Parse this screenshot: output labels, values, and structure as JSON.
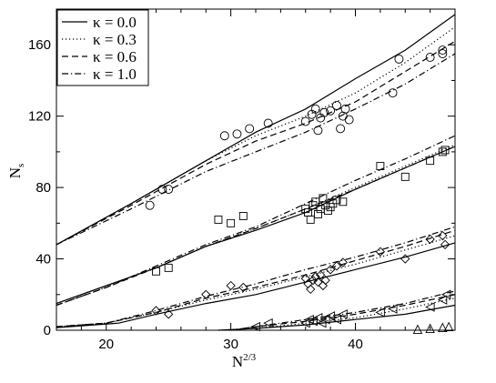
{
  "chart_data": {
    "type": "scatter",
    "title": "",
    "xlabel": "N",
    "xlabel_sup": "2/3",
    "ylabel": "N",
    "ylabel_sub": "s",
    "xlim": [
      16,
      48
    ],
    "ylim": [
      0,
      180
    ],
    "x_ticks": [
      20,
      30,
      40
    ],
    "y_ticks": [
      0,
      40,
      80,
      120,
      160
    ],
    "grid": false,
    "legend_position": "top-left",
    "series": [
      {
        "name": "κ = 0.0",
        "dash": "solid",
        "curves": [
          [
            [
              16,
              48
            ],
            [
              22,
              71
            ],
            [
              28,
              95
            ],
            [
              32,
              111
            ],
            [
              36,
              124
            ],
            [
              40,
              141
            ],
            [
              44,
              157
            ],
            [
              48,
              177
            ]
          ],
          [
            [
              16,
              15
            ],
            [
              20,
              25
            ],
            [
              24,
              35
            ],
            [
              28,
              47
            ],
            [
              32,
              56
            ],
            [
              36,
              66
            ],
            [
              40,
              79
            ],
            [
              44,
              91
            ],
            [
              48,
              103
            ]
          ],
          [
            [
              16,
              1.5
            ],
            [
              21,
              4
            ],
            [
              24,
              9
            ],
            [
              28,
              15
            ],
            [
              32,
              20
            ],
            [
              36,
              27
            ],
            [
              40,
              34
            ],
            [
              44,
              41
            ],
            [
              48,
              49
            ]
          ],
          [
            [
              29,
              0
            ],
            [
              32,
              1
            ],
            [
              36,
              3
            ],
            [
              40,
              6
            ],
            [
              44,
              9
            ],
            [
              48,
              14
            ]
          ]
        ]
      },
      {
        "name": "κ = 0.3",
        "dash": "dotted",
        "curves": [
          [
            [
              16,
              48
            ],
            [
              22,
              71
            ],
            [
              28,
              95
            ],
            [
              32,
              109
            ],
            [
              36,
              120
            ],
            [
              40,
              133
            ],
            [
              44,
              150
            ],
            [
              48,
              170
            ]
          ],
          [
            [
              16,
              15
            ],
            [
              20,
              25
            ],
            [
              24,
              35
            ],
            [
              28,
              47
            ],
            [
              32,
              57
            ],
            [
              36,
              68
            ],
            [
              40,
              80
            ],
            [
              44,
              92
            ],
            [
              48,
              104
            ]
          ],
          [
            [
              16,
              2
            ],
            [
              20,
              4
            ],
            [
              24,
              10
            ],
            [
              28,
              17
            ],
            [
              32,
              23
            ],
            [
              36,
              30
            ],
            [
              40,
              37
            ],
            [
              44,
              45
            ],
            [
              48,
              53
            ]
          ],
          [
            [
              29,
              0
            ],
            [
              32,
              1
            ],
            [
              36,
              4
            ],
            [
              40,
              7
            ],
            [
              44,
              12
            ],
            [
              48,
              18
            ]
          ]
        ]
      },
      {
        "name": "κ = 0.6",
        "dash": "dashed",
        "curves": [
          [
            [
              16,
              48
            ],
            [
              22,
              70
            ],
            [
              28,
              93
            ],
            [
              32,
              106
            ],
            [
              36,
              116
            ],
            [
              40,
              128
            ],
            [
              44,
              145
            ],
            [
              48,
              162
            ]
          ],
          [
            [
              16,
              14
            ],
            [
              20,
              24
            ],
            [
              24,
              35
            ],
            [
              28,
              47
            ],
            [
              32,
              57
            ],
            [
              36,
              68
            ],
            [
              40,
              79
            ],
            [
              44,
              91
            ],
            [
              48,
              103
            ]
          ],
          [
            [
              16,
              2
            ],
            [
              20,
              4
            ],
            [
              24,
              10
            ],
            [
              28,
              18
            ],
            [
              32,
              24
            ],
            [
              36,
              31
            ],
            [
              40,
              39
            ],
            [
              44,
              47
            ],
            [
              48,
              56
            ]
          ],
          [
            [
              30,
              0
            ],
            [
              32,
              2
            ],
            [
              36,
              5
            ],
            [
              40,
              9
            ],
            [
              44,
              14
            ],
            [
              48,
              20
            ]
          ]
        ]
      },
      {
        "name": "κ = 1.0",
        "dash": "dashdot",
        "curves": [
          [
            [
              16,
              48
            ],
            [
              22,
              68
            ],
            [
              28,
              89
            ],
            [
              32,
              100
            ],
            [
              36,
              111
            ],
            [
              40,
              124
            ],
            [
              44,
              138
            ],
            [
              48,
              155
            ]
          ],
          [
            [
              16,
              14
            ],
            [
              20,
              24
            ],
            [
              24,
              36
            ],
            [
              28,
              48
            ],
            [
              32,
              58
            ],
            [
              36,
              71
            ],
            [
              40,
              84
            ],
            [
              44,
              96
            ],
            [
              48,
              109
            ]
          ],
          [
            [
              16,
              2
            ],
            [
              20,
              4
            ],
            [
              24,
              11
            ],
            [
              28,
              19
            ],
            [
              32,
              26
            ],
            [
              36,
              34
            ],
            [
              40,
              41
            ],
            [
              44,
              49
            ],
            [
              48,
              58
            ]
          ],
          [
            [
              30,
              0
            ],
            [
              32,
              2
            ],
            [
              36,
              6
            ],
            [
              40,
              10
            ],
            [
              44,
              15
            ],
            [
              48,
              22
            ]
          ]
        ]
      }
    ],
    "markers": [
      {
        "shape": "circle",
        "points": [
          [
            23.5,
            70
          ],
          [
            24.5,
            79
          ],
          [
            25,
            79
          ],
          [
            29.5,
            109
          ],
          [
            30.5,
            110
          ],
          [
            31.5,
            113
          ],
          [
            33,
            116
          ],
          [
            36,
            117
          ],
          [
            36.5,
            121
          ],
          [
            36.8,
            124
          ],
          [
            37,
            112
          ],
          [
            37.2,
            119
          ],
          [
            37.5,
            122
          ],
          [
            38,
            123
          ],
          [
            38.5,
            126
          ],
          [
            39,
            120
          ],
          [
            39.2,
            124
          ],
          [
            39.5,
            118
          ],
          [
            38.8,
            113
          ],
          [
            43.5,
            152
          ],
          [
            43,
            133
          ],
          [
            46,
            153
          ],
          [
            47,
            157
          ],
          [
            47,
            155
          ]
        ]
      },
      {
        "shape": "square",
        "points": [
          [
            24,
            33
          ],
          [
            25,
            35
          ],
          [
            29,
            62
          ],
          [
            30,
            60
          ],
          [
            31,
            64
          ],
          [
            36,
            68
          ],
          [
            36.2,
            66
          ],
          [
            36.4,
            62
          ],
          [
            36.6,
            70
          ],
          [
            36.8,
            72
          ],
          [
            37,
            65
          ],
          [
            37.2,
            68
          ],
          [
            37.4,
            74
          ],
          [
            37.6,
            70
          ],
          [
            37.8,
            67
          ],
          [
            38,
            69
          ],
          [
            38.2,
            71
          ],
          [
            38.5,
            73
          ],
          [
            39,
            72
          ],
          [
            42,
            92
          ],
          [
            44,
            86
          ],
          [
            46,
            95
          ],
          [
            47,
            100
          ],
          [
            47.2,
            101
          ]
        ]
      },
      {
        "shape": "diamond",
        "points": [
          [
            24,
            11
          ],
          [
            25,
            9
          ],
          [
            28,
            20
          ],
          [
            30,
            25
          ],
          [
            31,
            24
          ],
          [
            36,
            29
          ],
          [
            36.2,
            26
          ],
          [
            36.4,
            23
          ],
          [
            36.6,
            28
          ],
          [
            36.8,
            30
          ],
          [
            37,
            27
          ],
          [
            37.2,
            31
          ],
          [
            37.4,
            25
          ],
          [
            37.6,
            28
          ],
          [
            38,
            34
          ],
          [
            38.5,
            36
          ],
          [
            39,
            38
          ],
          [
            42,
            44
          ],
          [
            44,
            40
          ],
          [
            46,
            51
          ],
          [
            47,
            53
          ],
          [
            47.2,
            48
          ]
        ]
      },
      {
        "shape": "triangle-left",
        "points": [
          [
            32,
            2
          ],
          [
            33,
            4
          ],
          [
            36,
            4
          ],
          [
            36.3,
            6
          ],
          [
            36.6,
            5
          ],
          [
            37,
            7
          ],
          [
            37.3,
            4
          ],
          [
            37.6,
            6
          ],
          [
            38,
            8
          ],
          [
            38.5,
            6
          ],
          [
            39,
            9
          ],
          [
            42,
            10
          ],
          [
            43,
            12
          ],
          [
            46,
            13
          ],
          [
            47,
            17
          ],
          [
            47.3,
            20
          ]
        ]
      },
      {
        "shape": "triangle-up",
        "points": [
          [
            45,
            0.5
          ],
          [
            46,
            1
          ],
          [
            47,
            1.5
          ],
          [
            47.5,
            2
          ]
        ]
      }
    ]
  }
}
